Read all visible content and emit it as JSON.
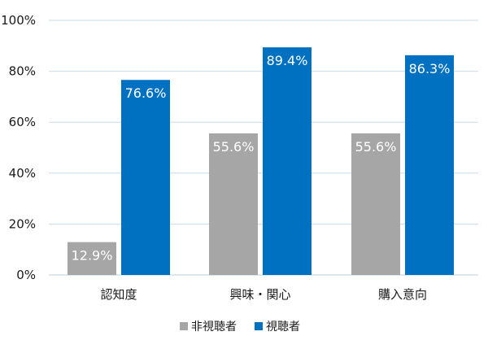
{
  "chart_data": {
    "type": "bar",
    "categories": [
      "認知度",
      "興味・関心",
      "購入意向"
    ],
    "series": [
      {
        "name": "非視聴者",
        "values": [
          12.9,
          55.6,
          55.6
        ],
        "color": "#a6a6a6"
      },
      {
        "name": "視聴者",
        "values": [
          76.6,
          89.4,
          86.3
        ],
        "color": "#0070c0"
      }
    ],
    "data_labels": [
      [
        "12.9%",
        "55.6%",
        "55.6%"
      ],
      [
        "76.6%",
        "89.4%",
        "86.3%"
      ]
    ],
    "ylim": [
      0,
      100
    ],
    "yticks": [
      0,
      20,
      40,
      60,
      80,
      100
    ],
    "ytick_labels": [
      "0%",
      "20%",
      "40%",
      "60%",
      "80%",
      "100%"
    ],
    "title": "",
    "xlabel": "",
    "ylabel": "",
    "grid": true,
    "legend_position": "bottom"
  }
}
